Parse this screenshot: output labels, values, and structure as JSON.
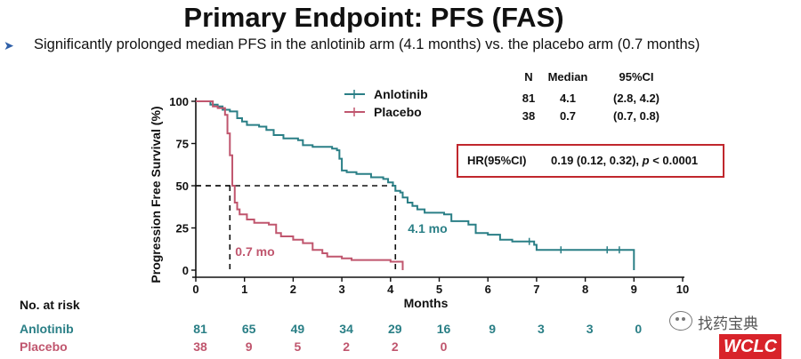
{
  "page": {
    "title": "Primary Endpoint: PFS (FAS)",
    "bullet": "➤",
    "subtitle": "Significantly prolonged median PFS in the anlotinib arm (4.1 months) vs. the placebo arm (0.7 months)"
  },
  "chart_data": {
    "type": "line",
    "title": "",
    "xlabel": "Months",
    "ylabel": "Progression Free Survival (%)",
    "xlim": [
      0,
      10
    ],
    "ylim": [
      0,
      100
    ],
    "x_ticks": [
      "0",
      "1",
      "2",
      "3",
      "4",
      "5",
      "6",
      "7",
      "8",
      "9",
      "10"
    ],
    "y_ticks": [
      "0",
      "25",
      "50",
      "75",
      "100"
    ],
    "grid": false,
    "legend_placement": "top-center",
    "series": [
      {
        "name": "Anlotinib",
        "color": "#2a7f86",
        "step_points": [
          [
            0,
            100
          ],
          [
            0.3,
            98
          ],
          [
            0.45,
            97
          ],
          [
            0.55,
            95
          ],
          [
            0.7,
            94
          ],
          [
            0.85,
            90
          ],
          [
            0.95,
            88
          ],
          [
            1.05,
            86
          ],
          [
            1.3,
            85
          ],
          [
            1.45,
            83
          ],
          [
            1.6,
            80
          ],
          [
            1.8,
            78
          ],
          [
            2.1,
            77
          ],
          [
            2.2,
            74
          ],
          [
            2.4,
            73
          ],
          [
            2.8,
            72
          ],
          [
            2.9,
            71
          ],
          [
            2.95,
            66
          ],
          [
            3.0,
            59
          ],
          [
            3.1,
            58
          ],
          [
            3.3,
            57
          ],
          [
            3.6,
            55
          ],
          [
            3.85,
            54
          ],
          [
            3.95,
            52
          ],
          [
            4.05,
            50
          ],
          [
            4.1,
            47
          ],
          [
            4.2,
            46
          ],
          [
            4.25,
            43
          ],
          [
            4.35,
            40
          ],
          [
            4.45,
            38
          ],
          [
            4.55,
            36
          ],
          [
            4.7,
            34
          ],
          [
            5.1,
            33
          ],
          [
            5.25,
            29
          ],
          [
            5.6,
            27
          ],
          [
            5.75,
            22
          ],
          [
            6.0,
            21
          ],
          [
            6.25,
            18
          ],
          [
            6.5,
            17
          ],
          [
            6.95,
            15
          ],
          [
            7.0,
            12
          ],
          [
            9.0,
            12
          ],
          [
            9.0,
            0
          ]
        ],
        "censor_x": [
          6.85,
          7.5,
          8.45,
          8.7
        ]
      },
      {
        "name": "Placebo",
        "color": "#c0566e",
        "step_points": [
          [
            0,
            100
          ],
          [
            0.35,
            97
          ],
          [
            0.45,
            96
          ],
          [
            0.6,
            92
          ],
          [
            0.65,
            81
          ],
          [
            0.7,
            68
          ],
          [
            0.75,
            50
          ],
          [
            0.8,
            40
          ],
          [
            0.85,
            36
          ],
          [
            0.9,
            33
          ],
          [
            1.05,
            30
          ],
          [
            1.2,
            28
          ],
          [
            1.5,
            27
          ],
          [
            1.65,
            22
          ],
          [
            1.75,
            20
          ],
          [
            2.0,
            18
          ],
          [
            2.2,
            16
          ],
          [
            2.4,
            12
          ],
          [
            2.6,
            10
          ],
          [
            2.7,
            8
          ],
          [
            3.0,
            7
          ],
          [
            3.2,
            6
          ],
          [
            4.0,
            6
          ],
          [
            4.0,
            5
          ],
          [
            4.25,
            5
          ],
          [
            4.25,
            0
          ]
        ],
        "censor_x": []
      }
    ],
    "median_marks": [
      {
        "series": "Anlotinib",
        "x": 4.1,
        "y": 50,
        "label": "4.1 mo"
      },
      {
        "series": "Placebo",
        "x": 0.7,
        "y": 50,
        "label": "0.7 mo"
      }
    ],
    "stats_table": {
      "headers": [
        "N",
        "Median",
        "95%CI"
      ],
      "rows": [
        {
          "series": "Anlotinib",
          "values": [
            "81",
            "4.1",
            "(2.8, 4.2)"
          ]
        },
        {
          "series": "Placebo",
          "values": [
            "38",
            "0.7",
            "(0.7, 0.8)"
          ]
        }
      ]
    },
    "hazard_ratio": {
      "label": "HR(95%CI)",
      "value": "0.19 (0.12, 0.32), ",
      "p_symbol": "p",
      "p_text": " < 0.0001"
    },
    "risk_table": {
      "title": "No. at risk",
      "times": [
        "0",
        "1",
        "2",
        "3",
        "4",
        "5",
        "6",
        "7",
        "8",
        "9"
      ],
      "rows": [
        {
          "label": "Anlotinib",
          "color": "#2a7f86",
          "counts": [
            "81",
            "65",
            "49",
            "34",
            "29",
            "16",
            "9",
            "3",
            "3",
            "0"
          ]
        },
        {
          "label": "Placebo",
          "color": "#c0566e",
          "counts": [
            "38",
            "9",
            "5",
            "2",
            "2",
            "0"
          ]
        }
      ]
    }
  },
  "watermark": {
    "text": "找药宝典",
    "logo_text": "WCLC",
    "icon": "wechat-icon"
  }
}
